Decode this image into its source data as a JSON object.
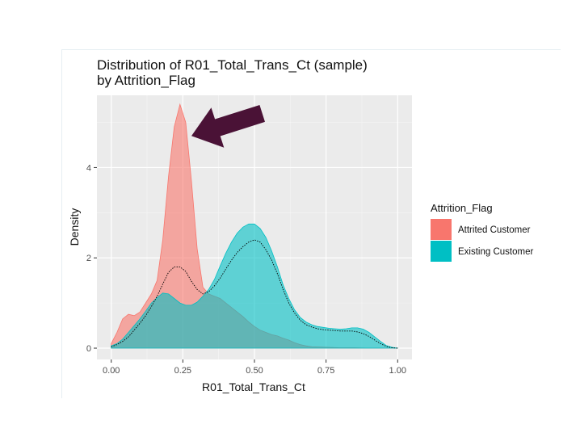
{
  "chart_data": {
    "type": "area",
    "title_line1": "Distribution of R01_Total_Trans_Ct (sample)",
    "title_line2": "by Attrition_Flag",
    "xlabel": "R01_Total_Trans_Ct",
    "ylabel": "Density",
    "xlim": [
      -0.05,
      1.05
    ],
    "ylim": [
      -0.25,
      5.6
    ],
    "x_ticks": [
      0.0,
      0.25,
      0.5,
      0.75,
      1.0
    ],
    "x_tick_labels": [
      "0.00",
      "0.25",
      "0.50",
      "0.75",
      "1.00"
    ],
    "y_ticks": [
      0,
      2,
      4
    ],
    "y_tick_labels": [
      "0",
      "2",
      "4"
    ],
    "grid": true,
    "legend_position": "right",
    "legend_title": "Attrition_Flag",
    "series": [
      {
        "name": "Attrited Customer",
        "color": "#F8766D",
        "x": [
          0.0,
          0.02,
          0.04,
          0.06,
          0.08,
          0.1,
          0.12,
          0.14,
          0.16,
          0.18,
          0.2,
          0.22,
          0.24,
          0.26,
          0.28,
          0.3,
          0.32,
          0.34,
          0.36,
          0.38,
          0.4,
          0.42,
          0.44,
          0.46,
          0.48,
          0.5,
          0.52,
          0.54,
          0.56,
          0.58,
          0.6,
          0.62,
          0.64,
          0.66,
          0.68,
          0.7,
          0.75,
          0.8,
          0.85,
          0.9,
          0.95,
          1.0
        ],
        "y": [
          0.1,
          0.35,
          0.65,
          0.75,
          0.72,
          0.8,
          1.0,
          1.2,
          1.5,
          2.4,
          3.8,
          4.9,
          5.4,
          5.0,
          3.7,
          2.2,
          1.35,
          1.2,
          1.15,
          1.1,
          1.0,
          0.9,
          0.8,
          0.7,
          0.58,
          0.48,
          0.4,
          0.35,
          0.3,
          0.27,
          0.22,
          0.18,
          0.12,
          0.08,
          0.05,
          0.03,
          0.02,
          0.01,
          0.01,
          0.0,
          0.0,
          0.0
        ]
      },
      {
        "name": "Existing Customer",
        "color": "#00BFC4",
        "x": [
          0.0,
          0.02,
          0.04,
          0.06,
          0.08,
          0.1,
          0.12,
          0.14,
          0.16,
          0.18,
          0.2,
          0.22,
          0.24,
          0.26,
          0.28,
          0.3,
          0.32,
          0.34,
          0.36,
          0.38,
          0.4,
          0.42,
          0.44,
          0.46,
          0.48,
          0.5,
          0.52,
          0.54,
          0.56,
          0.58,
          0.6,
          0.62,
          0.64,
          0.66,
          0.68,
          0.7,
          0.72,
          0.74,
          0.76,
          0.78,
          0.8,
          0.82,
          0.84,
          0.86,
          0.88,
          0.9,
          0.92,
          0.94,
          0.96,
          0.98,
          1.0
        ],
        "y": [
          0.05,
          0.1,
          0.2,
          0.35,
          0.5,
          0.65,
          0.82,
          1.0,
          1.12,
          1.22,
          1.2,
          1.1,
          1.0,
          0.95,
          0.95,
          1.02,
          1.15,
          1.3,
          1.52,
          1.82,
          2.1,
          2.35,
          2.55,
          2.68,
          2.75,
          2.75,
          2.65,
          2.45,
          2.15,
          1.8,
          1.4,
          1.1,
          0.85,
          0.68,
          0.58,
          0.52,
          0.48,
          0.46,
          0.44,
          0.43,
          0.42,
          0.43,
          0.45,
          0.45,
          0.42,
          0.35,
          0.25,
          0.15,
          0.06,
          0.02,
          0.0
        ]
      }
    ],
    "overall_density_line": {
      "style": "dotted",
      "color": "#000000",
      "x": [
        0.0,
        0.02,
        0.04,
        0.06,
        0.08,
        0.1,
        0.12,
        0.14,
        0.16,
        0.18,
        0.2,
        0.22,
        0.24,
        0.26,
        0.28,
        0.3,
        0.32,
        0.34,
        0.36,
        0.38,
        0.4,
        0.42,
        0.44,
        0.46,
        0.48,
        0.5,
        0.52,
        0.54,
        0.56,
        0.58,
        0.6,
        0.62,
        0.64,
        0.66,
        0.68,
        0.7,
        0.72,
        0.74,
        0.76,
        0.78,
        0.8,
        0.82,
        0.84,
        0.86,
        0.88,
        0.9,
        0.92,
        0.94,
        0.96,
        0.98,
        1.0
      ],
      "y": [
        0.03,
        0.08,
        0.15,
        0.25,
        0.4,
        0.55,
        0.72,
        0.92,
        1.15,
        1.42,
        1.68,
        1.8,
        1.8,
        1.7,
        1.48,
        1.3,
        1.2,
        1.25,
        1.38,
        1.55,
        1.75,
        1.95,
        2.12,
        2.25,
        2.35,
        2.4,
        2.35,
        2.18,
        1.95,
        1.65,
        1.3,
        1.0,
        0.78,
        0.62,
        0.52,
        0.47,
        0.43,
        0.41,
        0.4,
        0.39,
        0.38,
        0.38,
        0.38,
        0.36,
        0.32,
        0.26,
        0.18,
        0.1,
        0.04,
        0.01,
        0.0
      ]
    },
    "annotation": {
      "type": "arrow",
      "color": "#4A1236",
      "points_to": {
        "x": 0.28,
        "y": 4.7
      }
    }
  }
}
